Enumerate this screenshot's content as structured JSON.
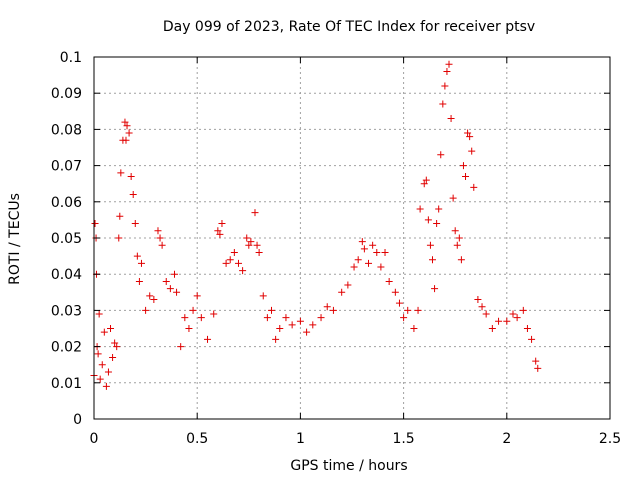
{
  "chart_data": {
    "type": "scatter",
    "title": "Day 099 of 2023, Rate Of TEC Index for receiver ptsv",
    "xlabel": "GPS time / hours",
    "ylabel": "ROTI / TECUs",
    "xlim": [
      0,
      2.5
    ],
    "ylim": [
      0,
      0.1
    ],
    "grid": true,
    "marker": "+",
    "x_ticks": [
      0,
      0.5,
      1,
      1.5,
      2,
      2.5
    ],
    "x_tick_labels": [
      "0",
      "0.5",
      "1",
      "1.5",
      "2",
      "2.5"
    ],
    "y_ticks": [
      0,
      0.01,
      0.02,
      0.03,
      0.04,
      0.05,
      0.06,
      0.07,
      0.08,
      0.09,
      0.1
    ],
    "y_tick_labels": [
      "0",
      "0.01",
      "0.02",
      "0.03",
      "0.04",
      "0.05",
      "0.06",
      "0.07",
      "0.08",
      "0.09",
      "0.1"
    ],
    "series": [
      {
        "color": "#e00000",
        "points": [
          [
            0.0,
            0.012
          ],
          [
            0.005,
            0.054
          ],
          [
            0.01,
            0.05
          ],
          [
            0.012,
            0.04
          ],
          [
            0.015,
            0.02
          ],
          [
            0.02,
            0.018
          ],
          [
            0.025,
            0.029
          ],
          [
            0.03,
            0.011
          ],
          [
            0.04,
            0.015
          ],
          [
            0.05,
            0.024
          ],
          [
            0.06,
            0.009
          ],
          [
            0.07,
            0.013
          ],
          [
            0.08,
            0.025
          ],
          [
            0.09,
            0.017
          ],
          [
            0.1,
            0.021
          ],
          [
            0.11,
            0.02
          ],
          [
            0.12,
            0.05
          ],
          [
            0.125,
            0.056
          ],
          [
            0.13,
            0.068
          ],
          [
            0.14,
            0.077
          ],
          [
            0.15,
            0.082
          ],
          [
            0.155,
            0.077
          ],
          [
            0.16,
            0.081
          ],
          [
            0.17,
            0.079
          ],
          [
            0.18,
            0.067
          ],
          [
            0.19,
            0.062
          ],
          [
            0.2,
            0.054
          ],
          [
            0.21,
            0.045
          ],
          [
            0.22,
            0.038
          ],
          [
            0.23,
            0.043
          ],
          [
            0.25,
            0.03
          ],
          [
            0.27,
            0.034
          ],
          [
            0.29,
            0.033
          ],
          [
            0.31,
            0.052
          ],
          [
            0.32,
            0.05
          ],
          [
            0.33,
            0.048
          ],
          [
            0.35,
            0.038
          ],
          [
            0.37,
            0.036
          ],
          [
            0.39,
            0.04
          ],
          [
            0.4,
            0.035
          ],
          [
            0.42,
            0.02
          ],
          [
            0.44,
            0.028
          ],
          [
            0.46,
            0.025
          ],
          [
            0.48,
            0.03
          ],
          [
            0.5,
            0.034
          ],
          [
            0.52,
            0.028
          ],
          [
            0.55,
            0.022
          ],
          [
            0.58,
            0.029
          ],
          [
            0.6,
            0.052
          ],
          [
            0.61,
            0.051
          ],
          [
            0.62,
            0.054
          ],
          [
            0.64,
            0.043
          ],
          [
            0.66,
            0.044
          ],
          [
            0.68,
            0.046
          ],
          [
            0.7,
            0.043
          ],
          [
            0.72,
            0.041
          ],
          [
            0.74,
            0.05
          ],
          [
            0.75,
            0.048
          ],
          [
            0.76,
            0.049
          ],
          [
            0.78,
            0.057
          ],
          [
            0.79,
            0.048
          ],
          [
            0.8,
            0.046
          ],
          [
            0.82,
            0.034
          ],
          [
            0.84,
            0.028
          ],
          [
            0.86,
            0.03
          ],
          [
            0.88,
            0.022
          ],
          [
            0.9,
            0.025
          ],
          [
            0.93,
            0.028
          ],
          [
            0.96,
            0.026
          ],
          [
            1.0,
            0.027
          ],
          [
            1.03,
            0.024
          ],
          [
            1.06,
            0.026
          ],
          [
            1.1,
            0.028
          ],
          [
            1.13,
            0.031
          ],
          [
            1.16,
            0.03
          ],
          [
            1.2,
            0.035
          ],
          [
            1.23,
            0.037
          ],
          [
            1.26,
            0.042
          ],
          [
            1.28,
            0.044
          ],
          [
            1.3,
            0.049
          ],
          [
            1.31,
            0.047
          ],
          [
            1.33,
            0.043
          ],
          [
            1.35,
            0.048
          ],
          [
            1.37,
            0.046
          ],
          [
            1.39,
            0.042
          ],
          [
            1.41,
            0.046
          ],
          [
            1.43,
            0.038
          ],
          [
            1.46,
            0.035
          ],
          [
            1.48,
            0.032
          ],
          [
            1.5,
            0.028
          ],
          [
            1.52,
            0.03
          ],
          [
            1.55,
            0.025
          ],
          [
            1.57,
            0.03
          ],
          [
            1.58,
            0.058
          ],
          [
            1.6,
            0.065
          ],
          [
            1.61,
            0.066
          ],
          [
            1.62,
            0.055
          ],
          [
            1.63,
            0.048
          ],
          [
            1.64,
            0.044
          ],
          [
            1.65,
            0.036
          ],
          [
            1.66,
            0.054
          ],
          [
            1.67,
            0.058
          ],
          [
            1.68,
            0.073
          ],
          [
            1.69,
            0.087
          ],
          [
            1.7,
            0.092
          ],
          [
            1.71,
            0.096
          ],
          [
            1.72,
            0.098
          ],
          [
            1.73,
            0.083
          ],
          [
            1.74,
            0.061
          ],
          [
            1.75,
            0.052
          ],
          [
            1.76,
            0.048
          ],
          [
            1.77,
            0.05
          ],
          [
            1.78,
            0.044
          ],
          [
            1.79,
            0.07
          ],
          [
            1.8,
            0.067
          ],
          [
            1.81,
            0.079
          ],
          [
            1.82,
            0.078
          ],
          [
            1.83,
            0.074
          ],
          [
            1.84,
            0.064
          ],
          [
            1.86,
            0.033
          ],
          [
            1.88,
            0.031
          ],
          [
            1.9,
            0.029
          ],
          [
            1.93,
            0.025
          ],
          [
            1.96,
            0.027
          ],
          [
            2.0,
            0.027
          ],
          [
            2.03,
            0.029
          ],
          [
            2.05,
            0.028
          ],
          [
            2.08,
            0.03
          ],
          [
            2.1,
            0.025
          ],
          [
            2.12,
            0.022
          ],
          [
            2.14,
            0.016
          ],
          [
            2.15,
            0.014
          ]
        ]
      }
    ]
  }
}
